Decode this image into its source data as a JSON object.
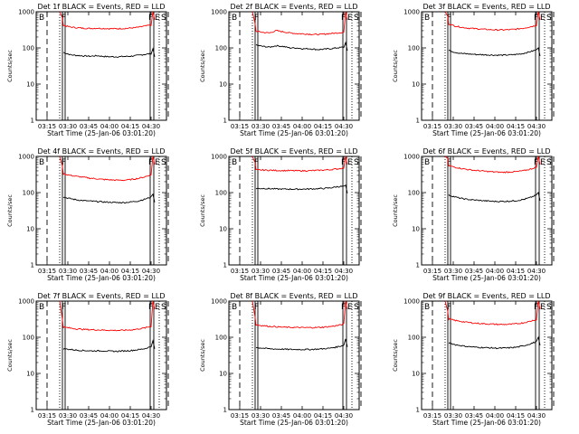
{
  "colors": {
    "events": "#000000",
    "lld": "#ff0000",
    "background": "#ffffff"
  },
  "chart_data": [
    {
      "type": "line",
      "title": "Det 1f BLACK = Events, RED = LLD",
      "xlabel": "Start Time (25-Jan-06 03:01:20)",
      "ylabel": "Counts/sec",
      "x_ticks": [
        "03:15",
        "03:30",
        "03:45",
        "04:00",
        "04:15",
        "04:30"
      ],
      "y_ticks": [
        "1",
        "10",
        "100",
        "1000"
      ],
      "ylim": [
        1,
        1000
      ],
      "yscale": "log",
      "markers": [
        "B",
        "F",
        "F",
        "E",
        "S"
      ],
      "series": [
        {
          "id": "events",
          "values": [
            75,
            65,
            62,
            60,
            59,
            61,
            58,
            57,
            57,
            58,
            59,
            62,
            66,
            70
          ],
          "spike_end": 95
        },
        {
          "id": "lld",
          "values": [
            420,
            380,
            360,
            350,
            345,
            350,
            345,
            340,
            340,
            345,
            355,
            370,
            400,
            430
          ],
          "spike_start": 1000,
          "spike_end": 1000
        }
      ]
    },
    {
      "type": "line",
      "title": "Det 2f BLACK = Events, RED = LLD",
      "xlabel": "Start Time (25-Jan-06 03:01:20)",
      "ylabel": "Counts/sec",
      "x_ticks": [
        "03:15",
        "03:30",
        "03:45",
        "04:00",
        "04:15",
        "04:30"
      ],
      "y_ticks": [
        "1",
        "10",
        "100",
        "1000"
      ],
      "ylim": [
        1,
        1000
      ],
      "yscale": "log",
      "markers": [
        "B",
        "F",
        "F",
        "E",
        "S"
      ],
      "series": [
        {
          "id": "events",
          "values": [
            120,
            110,
            105,
            115,
            110,
            100,
            100,
            95,
            95,
            90,
            92,
            95,
            100,
            105
          ],
          "spike_end": 140
        },
        {
          "id": "lld",
          "values": [
            290,
            270,
            260,
            300,
            280,
            260,
            250,
            245,
            240,
            235,
            240,
            250,
            260,
            270
          ],
          "spike_start": 1000,
          "spike_end": 1000
        }
      ]
    },
    {
      "type": "line",
      "title": "Det 3f BLACK = Events, RED = LLD",
      "xlabel": "Start Time (25-Jan-06 03:01:20)",
      "ylabel": "Counts/sec",
      "x_ticks": [
        "03:15",
        "03:30",
        "03:45",
        "04:00",
        "04:15",
        "04:30"
      ],
      "y_ticks": [
        "1",
        "10",
        "100",
        "1000"
      ],
      "ylim": [
        1,
        1000
      ],
      "yscale": "log",
      "markers": [
        "B",
        "F",
        "F",
        "E",
        "S"
      ],
      "series": [
        {
          "id": "events",
          "values": [
            85,
            75,
            70,
            68,
            66,
            65,
            64,
            63,
            63,
            64,
            66,
            70,
            78,
            88
          ],
          "spike_end": 100
        },
        {
          "id": "lld",
          "values": [
            460,
            400,
            370,
            350,
            340,
            330,
            320,
            315,
            315,
            320,
            330,
            350,
            380,
            420
          ],
          "spike_start": 1000,
          "spike_end": 1000
        }
      ]
    },
    {
      "type": "line",
      "title": "Det 4f BLACK = Events, RED = LLD",
      "xlabel": "Start Time (25-Jan-06 03:01:20)",
      "ylabel": "Counts/sec",
      "x_ticks": [
        "03:15",
        "03:30",
        "03:45",
        "04:00",
        "04:15",
        "04:30"
      ],
      "y_ticks": [
        "1",
        "10",
        "100",
        "1000"
      ],
      "ylim": [
        1,
        1000
      ],
      "yscale": "log",
      "markers": [
        "B",
        "F",
        "F",
        "E",
        "S"
      ],
      "series": [
        {
          "id": "events",
          "values": [
            75,
            68,
            63,
            60,
            58,
            57,
            55,
            54,
            53,
            53,
            55,
            58,
            65,
            75
          ],
          "spike_end": 90
        },
        {
          "id": "lld",
          "values": [
            330,
            300,
            280,
            265,
            250,
            240,
            230,
            225,
            220,
            220,
            230,
            245,
            270,
            310
          ],
          "spike_start": 1000,
          "spike_end": 1000
        }
      ]
    },
    {
      "type": "line",
      "title": "Det 5f BLACK = Events, RED = LLD",
      "xlabel": "Start Time (25-Jan-06 03:01:20)",
      "ylabel": "Counts/sec",
      "x_ticks": [
        "03:15",
        "03:30",
        "03:45",
        "04:00",
        "04:15",
        "04:30"
      ],
      "y_ticks": [
        "1",
        "10",
        "100",
        "1000"
      ],
      "ylim": [
        1,
        1000
      ],
      "yscale": "log",
      "markers": [
        "B",
        "F",
        "F",
        "E",
        "S"
      ],
      "series": [
        {
          "id": "events",
          "values": [
            130,
            130,
            128,
            126,
            125,
            125,
            124,
            125,
            126,
            128,
            130,
            135,
            145,
            150
          ],
          "spike_end": 160
        },
        {
          "id": "lld",
          "values": [
            420,
            420,
            415,
            410,
            405,
            405,
            400,
            400,
            405,
            410,
            420,
            430,
            450,
            480
          ],
          "spike_start": 1000,
          "spike_end": 1000
        }
      ]
    },
    {
      "type": "line",
      "title": "Det 6f BLACK = Events, RED = LLD",
      "xlabel": "Start Time (25-Jan-06 03:01:20)",
      "ylabel": "Counts/sec",
      "x_ticks": [
        "03:15",
        "03:30",
        "03:45",
        "04:00",
        "04:15",
        "04:30"
      ],
      "y_ticks": [
        "1",
        "10",
        "100",
        "1000"
      ],
      "ylim": [
        1,
        1000
      ],
      "yscale": "log",
      "markers": [
        "B",
        "F",
        "F",
        "E",
        "S"
      ],
      "series": [
        {
          "id": "events",
          "values": [
            85,
            75,
            68,
            64,
            62,
            60,
            58,
            57,
            57,
            58,
            60,
            64,
            72,
            85
          ],
          "spike_end": 100
        },
        {
          "id": "lld",
          "values": [
            550,
            500,
            460,
            430,
            410,
            395,
            380,
            370,
            365,
            370,
            380,
            400,
            440,
            500
          ],
          "spike_start": 1000,
          "spike_end": 1000
        }
      ]
    },
    {
      "type": "line",
      "title": "Det 7f BLACK = Events, RED = LLD",
      "xlabel": "Start Time (25-Jan-06 03:01:20)",
      "ylabel": "Counts/sec",
      "x_ticks": [
        "03:15",
        "03:30",
        "03:45",
        "04:00",
        "04:15",
        "04:30"
      ],
      "y_ticks": [
        "1",
        "10",
        "100",
        "1000"
      ],
      "ylim": [
        1,
        1000
      ],
      "yscale": "log",
      "markers": [
        "B",
        "F",
        "F",
        "E",
        "S"
      ],
      "series": [
        {
          "id": "events",
          "values": [
            48,
            46,
            44,
            43,
            42,
            42,
            42,
            41,
            41,
            42,
            43,
            45,
            48,
            55
          ],
          "spike_end": 80
        },
        {
          "id": "lld",
          "values": [
            190,
            180,
            170,
            165,
            162,
            160,
            158,
            156,
            155,
            156,
            160,
            168,
            180,
            200
          ],
          "spike_start": 1000,
          "spike_end": 1000
        }
      ]
    },
    {
      "type": "line",
      "title": "Det 8f BLACK = Events, RED = LLD",
      "xlabel": "Start Time (25-Jan-06 03:01:20)",
      "ylabel": "Counts/sec",
      "x_ticks": [
        "03:15",
        "03:30",
        "03:45",
        "04:00",
        "04:15",
        "04:30"
      ],
      "y_ticks": [
        "1",
        "10",
        "100",
        "1000"
      ],
      "ylim": [
        1,
        1000
      ],
      "yscale": "log",
      "markers": [
        "B",
        "F",
        "F",
        "E",
        "S"
      ],
      "series": [
        {
          "id": "events",
          "values": [
            52,
            50,
            48,
            47,
            47,
            46,
            46,
            46,
            46,
            47,
            48,
            50,
            54,
            60
          ],
          "spike_end": 90
        },
        {
          "id": "lld",
          "values": [
            220,
            210,
            200,
            195,
            190,
            188,
            186,
            185,
            185,
            186,
            190,
            198,
            210,
            230
          ],
          "spike_start": 1000,
          "spike_end": 1000
        }
      ]
    },
    {
      "type": "line",
      "title": "Det 9f BLACK = Events, RED = LLD",
      "xlabel": "Start Time (25-Jan-06 03:01:20)",
      "ylabel": "Counts/sec",
      "x_ticks": [
        "03:15",
        "03:30",
        "03:45",
        "04:00",
        "04:15",
        "04:30"
      ],
      "y_ticks": [
        "1",
        "10",
        "100",
        "1000"
      ],
      "ylim": [
        1,
        1000
      ],
      "yscale": "log",
      "markers": [
        "B",
        "F",
        "F",
        "E",
        "S"
      ],
      "series": [
        {
          "id": "events",
          "values": [
            70,
            62,
            58,
            55,
            53,
            52,
            51,
            50,
            50,
            51,
            53,
            57,
            65,
            75
          ],
          "spike_end": 100
        },
        {
          "id": "lld",
          "values": [
            320,
            290,
            270,
            255,
            245,
            238,
            232,
            228,
            226,
            228,
            235,
            250,
            275,
            310
          ],
          "spike_start": 1000,
          "spike_end": 1000
        }
      ]
    }
  ]
}
